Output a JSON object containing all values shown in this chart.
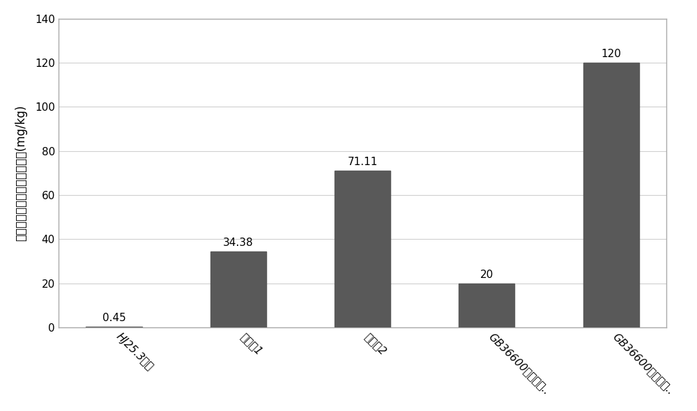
{
  "categories": [
    "HJ25.3方法",
    "实施套1",
    "实施套2",
    "GB36600第一类用..",
    "GB36600第一类用.."
  ],
  "values": [
    0.45,
    34.38,
    71.11,
    20,
    120
  ],
  "bar_color": "#595959",
  "ylabel": "不同方法计算的硃风险控制值(mg/kg)",
  "ylim": [
    0,
    140
  ],
  "yticks": [
    0,
    20,
    40,
    60,
    80,
    100,
    120,
    140
  ],
  "value_labels": [
    "0.45",
    "34.38",
    "71.11",
    "20",
    "120"
  ],
  "background_color": "#ffffff",
  "plot_bg_color": "#ffffff",
  "border_color": "#aaaaaa",
  "tick_label_fontsize": 11,
  "ylabel_fontsize": 12,
  "value_label_fontsize": 11,
  "bar_width": 0.45,
  "xticklabel_rotation": -45
}
